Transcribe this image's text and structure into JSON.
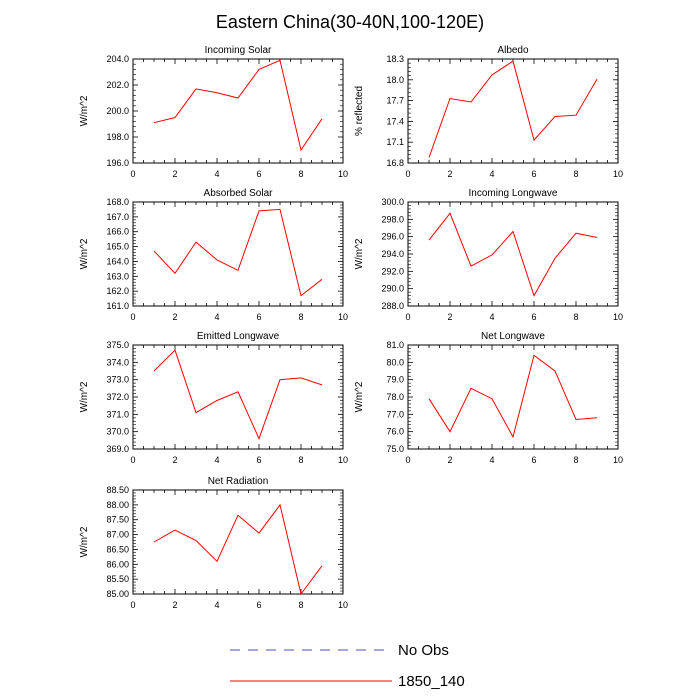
{
  "title": "Eastern China(30-40N,100-120E)",
  "legend": {
    "items": [
      {
        "label": "No Obs",
        "color": "#4a4ad0",
        "style": "dashed"
      },
      {
        "label": "1850_140",
        "color": "#ff0000",
        "style": "solid"
      }
    ]
  },
  "chart_data": [
    {
      "type": "line",
      "title": "Incoming Solar",
      "ylabel": "W/m^2",
      "x": [
        1,
        2,
        3,
        4,
        5,
        6,
        7,
        8,
        9
      ],
      "series": [
        {
          "name": "1850_140",
          "color": "#ff0000",
          "values": [
            199.1,
            199.5,
            201.7,
            201.4,
            201.0,
            203.2,
            203.9,
            197.0,
            199.4
          ]
        }
      ],
      "xlim": [
        0,
        10
      ],
      "xticks": [
        0,
        2,
        4,
        6,
        8,
        10
      ],
      "ylim": [
        196.0,
        204.0
      ],
      "yticks": [
        "196.0",
        "198.0",
        "200.0",
        "202.0",
        "204.0"
      ],
      "ydecimals": 1
    },
    {
      "type": "line",
      "title": "Albedo",
      "ylabel": "% reflected",
      "x": [
        1,
        2,
        3,
        4,
        5,
        6,
        7,
        8,
        9
      ],
      "series": [
        {
          "name": "1850_140",
          "color": "#ff0000",
          "values": [
            16.88,
            17.73,
            17.68,
            18.07,
            18.27,
            17.13,
            17.47,
            17.49,
            18.01
          ]
        }
      ],
      "xlim": [
        0,
        10
      ],
      "xticks": [
        0,
        2,
        4,
        6,
        8,
        10
      ],
      "ylim": [
        16.8,
        18.3
      ],
      "yticks": [
        "16.8",
        "17.1",
        "17.4",
        "17.7",
        "18.0",
        "18.3"
      ],
      "ydecimals": 1
    },
    {
      "type": "line",
      "title": "Absorbed Solar",
      "ylabel": "W/m^2",
      "x": [
        1,
        2,
        3,
        4,
        5,
        6,
        7,
        8,
        9
      ],
      "series": [
        {
          "name": "1850_140",
          "color": "#ff0000",
          "values": [
            164.7,
            163.2,
            165.3,
            164.1,
            163.4,
            167.4,
            167.5,
            161.7,
            162.8
          ]
        }
      ],
      "xlim": [
        0,
        10
      ],
      "xticks": [
        0,
        2,
        4,
        6,
        8,
        10
      ],
      "ylim": [
        161.0,
        168.0
      ],
      "yticks": [
        "161.0",
        "162.0",
        "163.0",
        "164.0",
        "165.0",
        "166.0",
        "167.0",
        "168.0"
      ],
      "ydecimals": 1
    },
    {
      "type": "line",
      "title": "Incoming Longwave",
      "ylabel": "W/m^2",
      "x": [
        1,
        2,
        3,
        4,
        5,
        6,
        7,
        8,
        9
      ],
      "series": [
        {
          "name": "1850_140",
          "color": "#ff0000",
          "values": [
            295.6,
            298.7,
            292.6,
            293.9,
            296.6,
            289.2,
            293.5,
            296.4,
            295.9
          ]
        }
      ],
      "xlim": [
        0,
        10
      ],
      "xticks": [
        0,
        2,
        4,
        6,
        8,
        10
      ],
      "ylim": [
        288.0,
        300.0
      ],
      "yticks": [
        "288.0",
        "290.0",
        "292.0",
        "294.0",
        "296.0",
        "298.0",
        "300.0"
      ],
      "ydecimals": 1
    },
    {
      "type": "line",
      "title": "Emitted Longwave",
      "ylabel": "W/m^2",
      "x": [
        1,
        2,
        3,
        4,
        5,
        6,
        7,
        8,
        9
      ],
      "series": [
        {
          "name": "1850_140",
          "color": "#ff0000",
          "values": [
            373.5,
            374.7,
            371.1,
            371.8,
            372.3,
            369.6,
            373.0,
            373.1,
            372.7
          ]
        }
      ],
      "xlim": [
        0,
        10
      ],
      "xticks": [
        0,
        2,
        4,
        6,
        8,
        10
      ],
      "ylim": [
        369.0,
        375.0
      ],
      "yticks": [
        "369.0",
        "370.0",
        "371.0",
        "372.0",
        "373.0",
        "374.0",
        "375.0"
      ],
      "ydecimals": 1
    },
    {
      "type": "line",
      "title": "Net Longwave",
      "ylabel": "W/m^2",
      "x": [
        1,
        2,
        3,
        4,
        5,
        6,
        7,
        8,
        9
      ],
      "series": [
        {
          "name": "1850_140",
          "color": "#ff0000",
          "values": [
            77.9,
            76.0,
            78.5,
            77.9,
            75.7,
            80.4,
            79.5,
            76.7,
            76.8
          ]
        }
      ],
      "xlim": [
        0,
        10
      ],
      "xticks": [
        0,
        2,
        4,
        6,
        8,
        10
      ],
      "ylim": [
        75.0,
        81.0
      ],
      "yticks": [
        "75.0",
        "76.0",
        "77.0",
        "78.0",
        "79.0",
        "80.0",
        "81.0"
      ],
      "ydecimals": 1
    },
    {
      "type": "line",
      "title": "Net Radiation",
      "ylabel": "W/m^2",
      "x": [
        1,
        2,
        3,
        4,
        5,
        6,
        7,
        8,
        9
      ],
      "series": [
        {
          "name": "1850_140",
          "color": "#ff0000",
          "values": [
            86.75,
            87.15,
            86.8,
            86.1,
            87.65,
            87.05,
            88.0,
            85.0,
            85.95
          ]
        }
      ],
      "xlim": [
        0,
        10
      ],
      "xticks": [
        0,
        2,
        4,
        6,
        8,
        10
      ],
      "ylim": [
        85.0,
        88.5
      ],
      "yticks": [
        "85.00",
        "85.50",
        "86.00",
        "86.50",
        "87.00",
        "87.50",
        "88.00",
        "88.50"
      ],
      "ydecimals": 2
    }
  ]
}
